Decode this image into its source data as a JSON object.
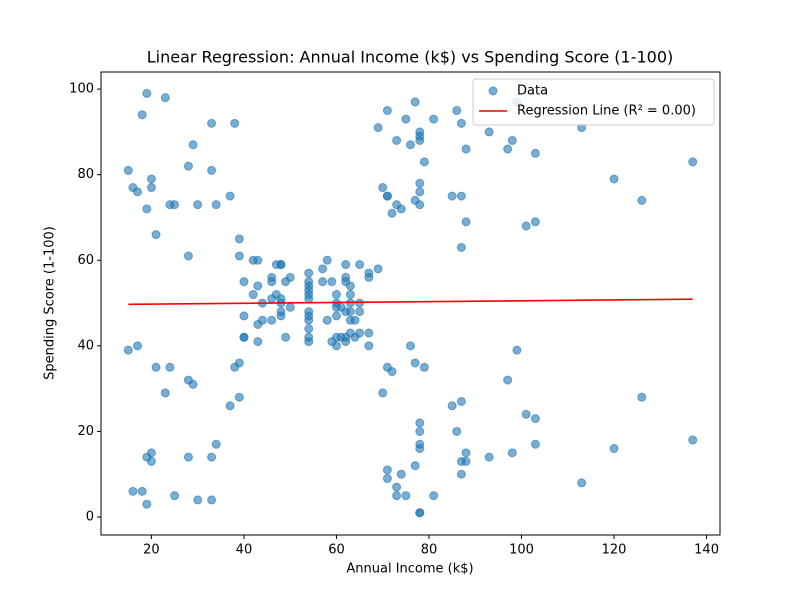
{
  "chart_data": {
    "type": "scatter",
    "title": "Linear Regression: Annual Income (k$) vs Spending Score (1-100)",
    "x_label": "Annual Income (k$)",
    "y_label": "Spending Score (1-100)",
    "xlim": [
      9.1,
      142.9
    ],
    "ylim": [
      -4.2,
      104
    ],
    "xticks": [
      20,
      40,
      60,
      80,
      100,
      120,
      140
    ],
    "yticks": [
      0,
      20,
      40,
      60,
      80,
      100
    ],
    "legend": "upper right",
    "series": [
      {
        "name": "Data",
        "color": "#1f77b4",
        "mode": "markers",
        "x": [
          15,
          15,
          16,
          16,
          17,
          17,
          18,
          18,
          19,
          19,
          19,
          19,
          20,
          20,
          20,
          20,
          21,
          21,
          23,
          23,
          24,
          24,
          25,
          25,
          28,
          28,
          28,
          28,
          29,
          29,
          30,
          30,
          33,
          33,
          33,
          33,
          34,
          34,
          37,
          37,
          38,
          38,
          39,
          39,
          39,
          39,
          40,
          40,
          40,
          40,
          42,
          42,
          43,
          43,
          43,
          43,
          44,
          44,
          46,
          46,
          46,
          46,
          47,
          47,
          48,
          48,
          48,
          48,
          48,
          48,
          49,
          49,
          50,
          50,
          54,
          54,
          54,
          54,
          54,
          54,
          54,
          54,
          54,
          54,
          54,
          54,
          57,
          57,
          58,
          58,
          59,
          59,
          60,
          60,
          60,
          60,
          60,
          60,
          61,
          61,
          62,
          62,
          62,
          62,
          62,
          62,
          63,
          63,
          63,
          63,
          63,
          63,
          64,
          64,
          65,
          65,
          65,
          65,
          67,
          67,
          67,
          67,
          69,
          69,
          70,
          70,
          71,
          71,
          71,
          71,
          71,
          71,
          72,
          72,
          73,
          73,
          73,
          73,
          74,
          74,
          75,
          75,
          76,
          76,
          77,
          77,
          77,
          77,
          78,
          78,
          78,
          78,
          78,
          78,
          78,
          78,
          78,
          78,
          78,
          78,
          79,
          79,
          81,
          81,
          85,
          85,
          86,
          86,
          87,
          87,
          87,
          87,
          87,
          87,
          88,
          88,
          88,
          88,
          93,
          93,
          97,
          97,
          98,
          98,
          99,
          99,
          101,
          101,
          103,
          103,
          103,
          103,
          113,
          113,
          120,
          120,
          126,
          126,
          137,
          137
        ],
        "values": [
          39,
          81,
          6,
          77,
          40,
          76,
          6,
          94,
          3,
          72,
          14,
          99,
          15,
          77,
          13,
          79,
          35,
          66,
          29,
          98,
          35,
          73,
          5,
          73,
          14,
          82,
          32,
          61,
          31,
          87,
          4,
          73,
          4,
          92,
          14,
          81,
          17,
          73,
          26,
          75,
          35,
          92,
          36,
          61,
          28,
          65,
          55,
          47,
          42,
          42,
          52,
          60,
          54,
          60,
          45,
          41,
          50,
          46,
          51,
          46,
          56,
          55,
          52,
          59,
          51,
          59,
          50,
          48,
          59,
          47,
          55,
          42,
          49,
          56,
          47,
          54,
          53,
          48,
          52,
          42,
          51,
          55,
          41,
          44,
          57,
          46,
          58,
          55,
          60,
          46,
          55,
          41,
          49,
          40,
          42,
          52,
          47,
          50,
          42,
          49,
          41,
          48,
          59,
          55,
          56,
          42,
          50,
          46,
          43,
          48,
          52,
          54,
          42,
          46,
          48,
          50,
          43,
          59,
          43,
          57,
          56,
          40,
          58,
          91,
          29,
          77,
          35,
          95,
          11,
          75,
          9,
          75,
          34,
          71,
          5,
          88,
          7,
          73,
          10,
          72,
          5,
          93,
          40,
          87,
          12,
          97,
          36,
          74,
          22,
          90,
          17,
          88,
          20,
          76,
          16,
          89,
          1,
          78,
          1,
          73,
          35,
          83,
          5,
          93,
          26,
          75,
          20,
          95,
          27,
          63,
          13,
          75,
          10,
          92,
          13,
          86,
          15,
          69,
          14,
          90,
          32,
          86,
          15,
          88,
          39,
          97,
          24,
          68,
          17,
          85,
          23,
          69,
          8,
          91,
          16,
          79,
          28,
          74,
          18,
          83
        ]
      },
      {
        "name": "Regression Line (R² = 0.00)",
        "color": "#ff0000",
        "mode": "line",
        "x": [
          15,
          137
        ],
        "values": [
          49.7,
          50.9
        ]
      }
    ]
  }
}
